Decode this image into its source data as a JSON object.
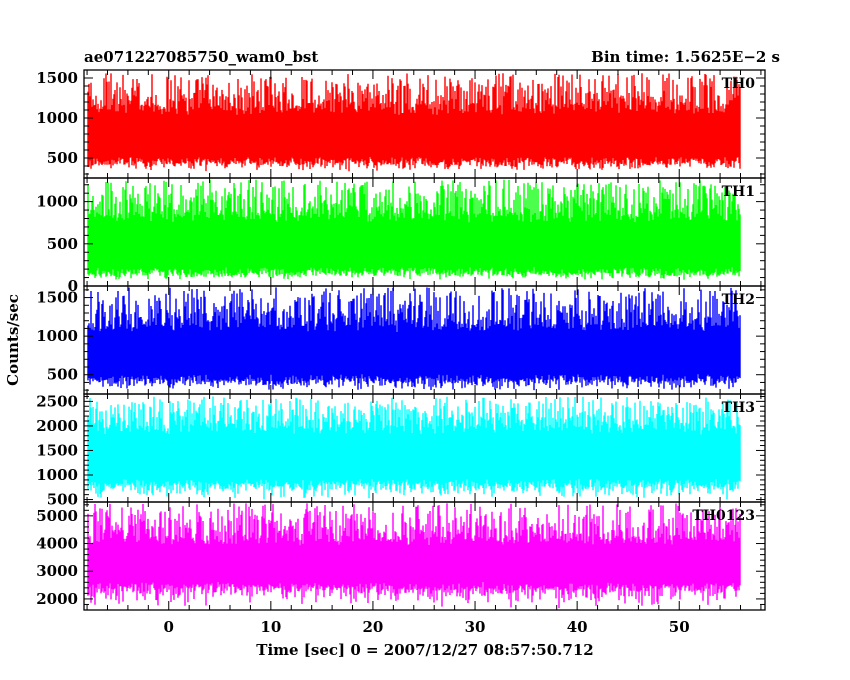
{
  "chart_data": {
    "type": "line",
    "title_left": "ae071227085750_wam0_bst",
    "title_right": "Bin time: 1.5625E−2 s",
    "xlabel": "Time [sec] 0 = 2007/12/27 08:57:50.712",
    "ylabel": "Counts/sec",
    "xlim": [
      -8.3,
      58.4
    ],
    "x_data_range": [
      -8,
      56
    ],
    "x_ticks": [
      0,
      10,
      20,
      30,
      40,
      50
    ],
    "panels": [
      {
        "label": "TH0",
        "color": "#ff0000",
        "ylim": [
          250,
          1600
        ],
        "yticks": [
          500,
          1000,
          1500
        ],
        "min": 330,
        "max": 1560,
        "core": [
          470,
          1080
        ]
      },
      {
        "label": "TH1",
        "color": "#00ff00",
        "ylim": [
          0,
          1280
        ],
        "yticks": [
          0,
          500,
          1000
        ],
        "min": 70,
        "max": 1260,
        "core": [
          180,
          800
        ]
      },
      {
        "label": "TH2",
        "color": "#0000ff",
        "ylim": [
          250,
          1650
        ],
        "yticks": [
          500,
          1000,
          1500
        ],
        "min": 290,
        "max": 1640,
        "core": [
          460,
          1100
        ]
      },
      {
        "label": "TH3",
        "color": "#00ffff",
        "ylim": [
          450,
          2650
        ],
        "yticks": [
          500,
          1000,
          1500,
          2000,
          2500
        ],
        "min": 480,
        "max": 2600,
        "core": [
          850,
          1900
        ]
      },
      {
        "label": "TH0123",
        "color": "#ff00ff",
        "ylim": [
          1600,
          5500
        ],
        "yticks": [
          2000,
          3000,
          4000,
          5000
        ],
        "min": 1650,
        "max": 5450,
        "core": [
          2500,
          4050
        ]
      }
    ]
  }
}
